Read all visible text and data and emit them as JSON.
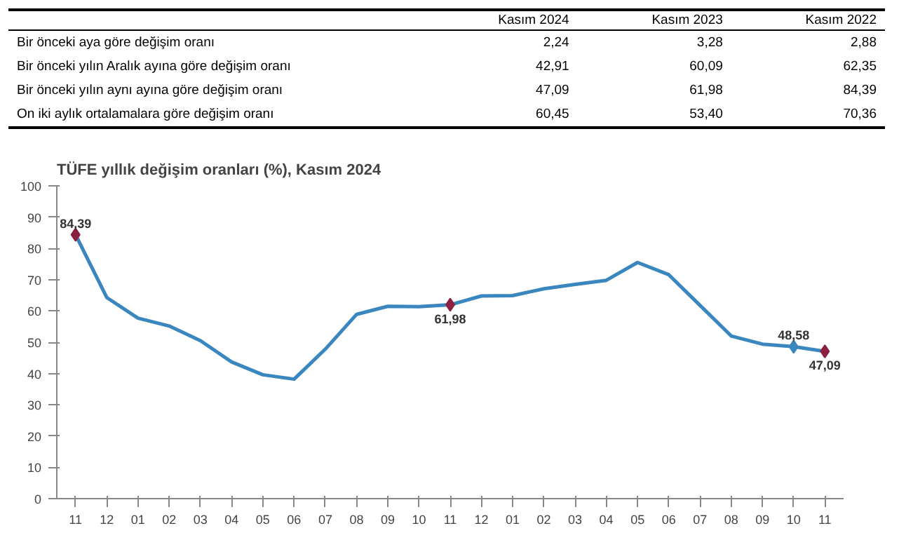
{
  "chart_data": {
    "type": "line",
    "title": "TÜFE yıllık değişim oranları (%), Kasım 2024",
    "annotations": [
      "Kasım 2024",
      "Kasım 2023",
      "Kasım 2022",
      "Bir önceki aya göre değişim oranı",
      "2,24",
      "3,28",
      "2,88",
      "Bir önceki yılın Aralık ayına göre değişim oranı",
      "42,91",
      "60,09",
      "62,35",
      "Bir önceki yılın aynı ayına göre değişim oranı",
      "47,09",
      "61,98",
      "84,39",
      "On iki aylık ortalamalara göre değişim oranı",
      "60,45",
      "53,40",
      "70,36"
    ],
    "categories": [
      "11",
      "12",
      "01",
      "02",
      "03",
      "04",
      "05",
      "06",
      "07",
      "08",
      "09",
      "10",
      "11",
      "12",
      "01",
      "02",
      "03",
      "04",
      "05",
      "06",
      "07",
      "08",
      "09",
      "10",
      "11"
    ],
    "series": [
      {
        "color": "#3a87c0",
        "values": [
          84.39,
          64.3,
          57.7,
          55.2,
          50.5,
          43.7,
          39.6,
          38.2,
          47.8,
          58.9,
          61.5,
          61.4,
          61.98,
          64.8,
          64.9,
          67.1,
          68.5,
          69.8,
          75.5,
          71.6,
          61.8,
          52.0,
          49.4,
          48.58,
          47.09
        ],
        "colors": [
          "#8b2040",
          null,
          null,
          null,
          null,
          null,
          null,
          null,
          null,
          null,
          null,
          null,
          "#8b2040",
          null,
          null,
          null,
          null,
          null,
          null,
          null,
          null,
          null,
          null,
          "#3a87c0",
          "#8b2040"
        ],
        "value_labels": [
          "84,39",
          null,
          null,
          null,
          null,
          null,
          null,
          null,
          null,
          null,
          null,
          null,
          "61,98",
          null,
          null,
          null,
          null,
          null,
          null,
          null,
          null,
          null,
          null,
          "48,58",
          "47,09"
        ]
      }
    ],
    "ylim": [
      0,
      100
    ],
    "yticks": [
      0,
      10,
      20,
      30,
      40,
      50,
      60,
      70,
      80,
      90,
      100
    ],
    "grid": false,
    "line_style": "solid"
  }
}
